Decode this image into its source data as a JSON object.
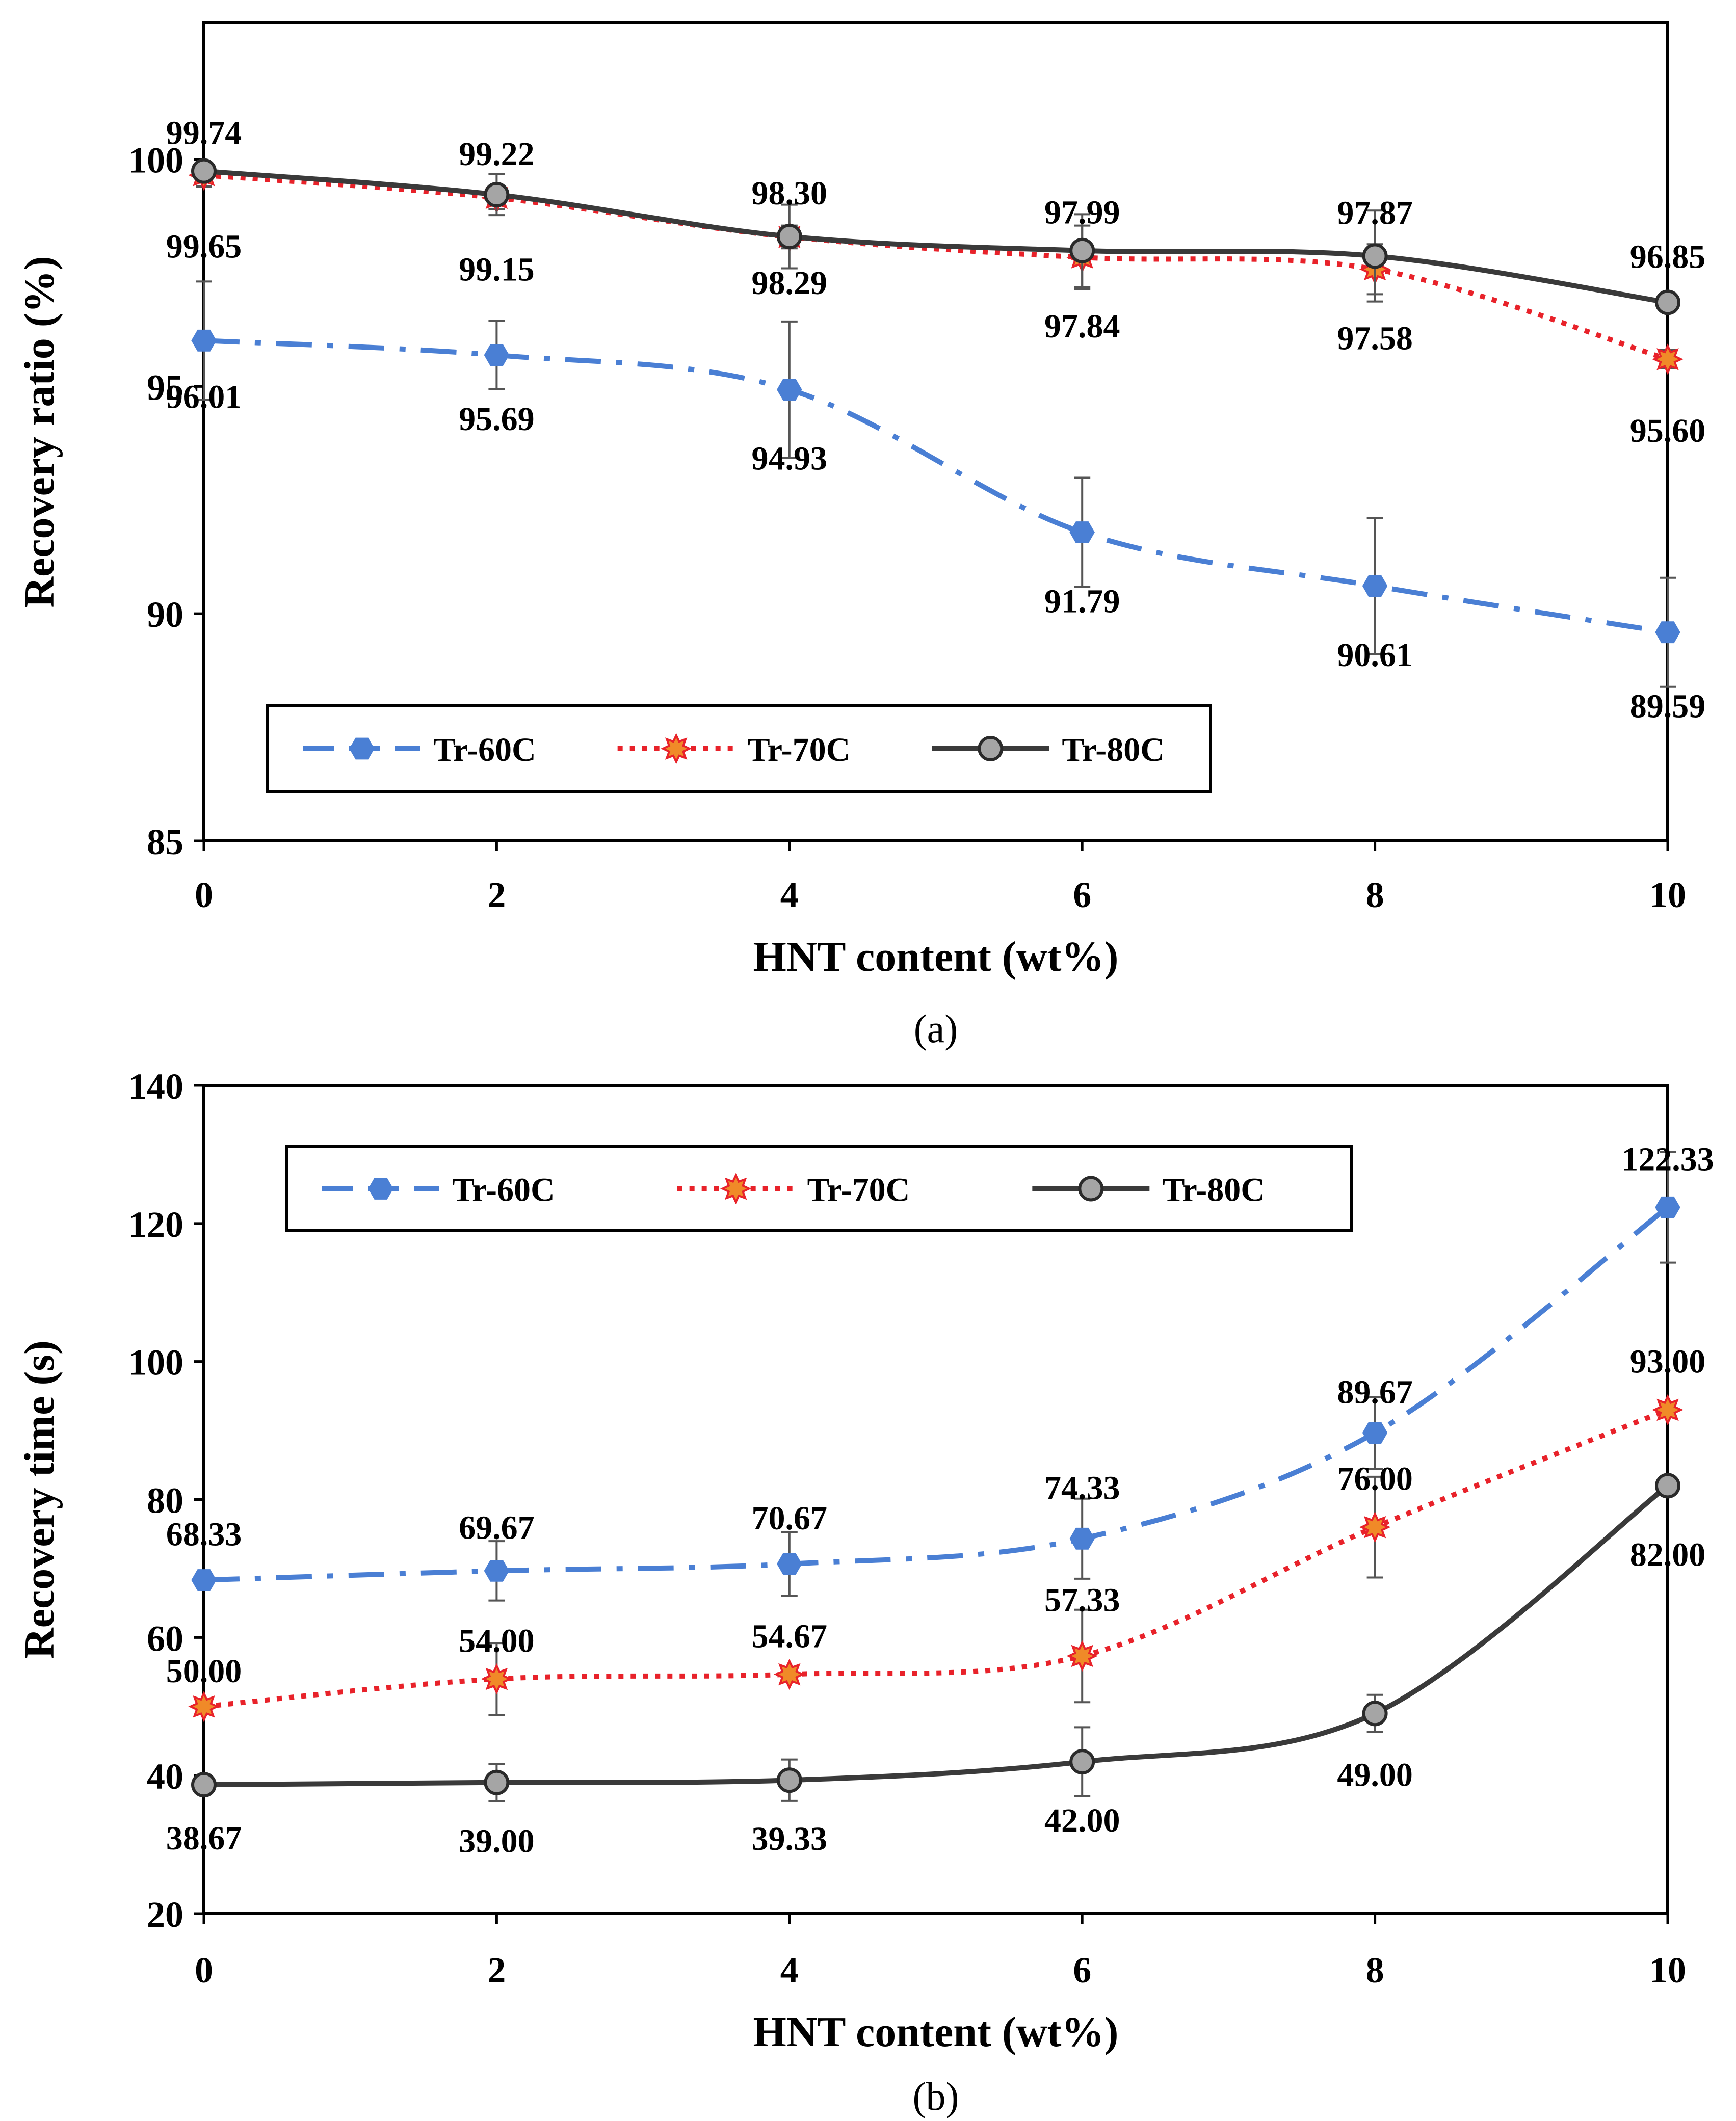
{
  "colors": {
    "Tr-60C": "#4a7fd4",
    "Tr-70C": "#e8222a",
    "Tr-80C": "#3a3a3a",
    "marker70": "#f08a28",
    "marker80": "#a5a5a5"
  },
  "chart_data": [
    {
      "panel": "a",
      "caption": "(a)",
      "type": "line",
      "xlabel": "HNT content (wt%)",
      "ylabel": "Recovery ratio (%)",
      "x": [
        0,
        2,
        4,
        6,
        8,
        10
      ],
      "xlim": [
        0,
        10
      ],
      "ylim": [
        85,
        103
      ],
      "yticks": [
        85,
        90,
        95,
        100
      ],
      "legend_position": "bottom-left",
      "series": [
        {
          "name": "Tr-60C",
          "values": [
            96.01,
            95.69,
            94.93,
            91.79,
            90.61,
            89.59
          ],
          "errors": [
            1.3,
            0.75,
            1.5,
            1.2,
            1.5,
            1.2
          ],
          "labels": [
            "96.01",
            "95.69",
            "94.93",
            "91.79",
            "90.61",
            "89.59"
          ]
        },
        {
          "name": "Tr-70C",
          "values": [
            99.65,
            99.15,
            98.29,
            97.84,
            97.58,
            95.6
          ],
          "errors": [
            0.25,
            0.25,
            0.25,
            0.7,
            0.55,
            0.2
          ],
          "labels": [
            "99.65",
            "99.15",
            "98.29",
            "97.84",
            "97.58",
            "95.60"
          ]
        },
        {
          "name": "Tr-80C",
          "values": [
            99.74,
            99.22,
            98.3,
            97.99,
            97.87,
            96.85
          ],
          "errors": [
            0.1,
            0.45,
            0.7,
            0.8,
            1.0,
            0.2
          ],
          "labels": [
            "99.74",
            "99.22",
            "98.30",
            "97.99",
            "97.87",
            "96.85"
          ]
        }
      ]
    },
    {
      "panel": "b",
      "caption": "(b)",
      "type": "line",
      "xlabel": "HNT content (wt%)",
      "ylabel": "Recovery time (s)",
      "x": [
        0,
        2,
        4,
        6,
        8,
        10
      ],
      "xlim": [
        0,
        10
      ],
      "ylim": [
        20,
        140
      ],
      "yticks": [
        20,
        40,
        60,
        80,
        100,
        120,
        140
      ],
      "legend_position": "top-left",
      "series": [
        {
          "name": "Tr-60C",
          "values": [
            68.33,
            69.67,
            70.67,
            74.33,
            89.67,
            122.33
          ],
          "errors": [
            0,
            4.3,
            4.6,
            5.8,
            5.2,
            8.0
          ],
          "labels": [
            "68.33",
            "69.67",
            "70.67",
            "74.33",
            "89.67",
            "122.33"
          ]
        },
        {
          "name": "Tr-70C",
          "values": [
            50.0,
            54.0,
            54.67,
            57.33,
            76.0,
            93.0
          ],
          "errors": [
            0,
            5.2,
            0.3,
            6.7,
            7.3,
            0
          ],
          "labels": [
            "50.00",
            "54.00",
            "54.67",
            "57.33",
            "76.00",
            "93.00"
          ]
        },
        {
          "name": "Tr-80C",
          "values": [
            38.67,
            39.0,
            39.33,
            42.0,
            49.0,
            82.0
          ],
          "errors": [
            0,
            2.7,
            3.0,
            5.0,
            2.7,
            0
          ],
          "labels": [
            "38.67",
            "39.00",
            "39.33",
            "42.00",
            "49.00",
            "82.00"
          ]
        }
      ]
    }
  ]
}
